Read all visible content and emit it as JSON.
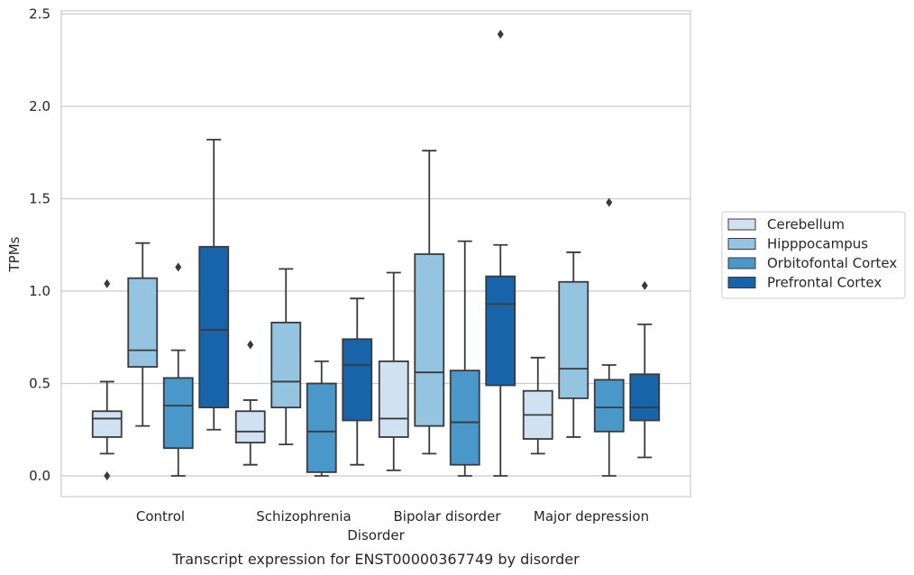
{
  "chart_data": {
    "type": "box",
    "title": "",
    "caption": "Transcript expression for ENST00000367749 by disorder",
    "xlabel": "Disorder",
    "ylabel": "TPMs",
    "ylim": [
      -0.11,
      2.51
    ],
    "yticks": [
      0.0,
      0.5,
      1.0,
      1.5,
      2.0,
      2.5
    ],
    "ytick_labels": [
      "0.0",
      "0.5",
      "1.0",
      "1.5",
      "2.0",
      "2.5"
    ],
    "grid": true,
    "legend_position": "right",
    "categories": [
      "Control",
      "Schizophrenia",
      "Bipolar disorder",
      "Major depression"
    ],
    "series": [
      {
        "name": "Cerebellum",
        "color": "#d0e1f2",
        "boxes": [
          {
            "whislo": 0.12,
            "q1": 0.21,
            "med": 0.31,
            "q3": 0.35,
            "whishi": 0.51,
            "fliers": [
              1.04,
              0.0
            ]
          },
          {
            "whislo": 0.06,
            "q1": 0.18,
            "med": 0.24,
            "q3": 0.35,
            "whishi": 0.41,
            "fliers": [
              0.71
            ]
          },
          {
            "whislo": 0.03,
            "q1": 0.21,
            "med": 0.31,
            "q3": 0.62,
            "whishi": 1.1,
            "fliers": []
          },
          {
            "whislo": 0.12,
            "q1": 0.2,
            "med": 0.33,
            "q3": 0.46,
            "whishi": 0.64,
            "fliers": []
          }
        ]
      },
      {
        "name": "Hipppocampus",
        "color": "#94c4df",
        "boxes": [
          {
            "whislo": 0.27,
            "q1": 0.59,
            "med": 0.68,
            "q3": 1.07,
            "whishi": 1.26,
            "fliers": []
          },
          {
            "whislo": 0.17,
            "q1": 0.37,
            "med": 0.51,
            "q3": 0.83,
            "whishi": 1.12,
            "fliers": []
          },
          {
            "whislo": 0.12,
            "q1": 0.27,
            "med": 0.56,
            "q3": 1.2,
            "whishi": 1.76,
            "fliers": []
          },
          {
            "whislo": 0.21,
            "q1": 0.42,
            "med": 0.58,
            "q3": 1.05,
            "whishi": 1.21,
            "fliers": []
          }
        ]
      },
      {
        "name": "Orbitofontal Cortex",
        "color": "#4a98c9",
        "boxes": [
          {
            "whislo": 0.0,
            "q1": 0.15,
            "med": 0.38,
            "q3": 0.53,
            "whishi": 0.68,
            "fliers": [
              1.13
            ]
          },
          {
            "whislo": 0.0,
            "q1": 0.02,
            "med": 0.24,
            "q3": 0.5,
            "whishi": 0.62,
            "fliers": []
          },
          {
            "whislo": 0.0,
            "q1": 0.06,
            "med": 0.29,
            "q3": 0.57,
            "whishi": 1.27,
            "fliers": []
          },
          {
            "whislo": 0.0,
            "q1": 0.24,
            "med": 0.37,
            "q3": 0.52,
            "whishi": 0.6,
            "fliers": [
              1.48
            ]
          }
        ]
      },
      {
        "name": "Prefrontal Cortex",
        "color": "#1764ab",
        "boxes": [
          {
            "whislo": 0.25,
            "q1": 0.37,
            "med": 0.79,
            "q3": 1.24,
            "whishi": 1.82,
            "fliers": []
          },
          {
            "whislo": 0.06,
            "q1": 0.3,
            "med": 0.6,
            "q3": 0.74,
            "whishi": 0.96,
            "fliers": []
          },
          {
            "whislo": 0.0,
            "q1": 0.49,
            "med": 0.93,
            "q3": 1.08,
            "whishi": 1.25,
            "fliers": [
              2.39
            ]
          },
          {
            "whislo": 0.1,
            "q1": 0.3,
            "med": 0.37,
            "q3": 0.55,
            "whishi": 0.82,
            "fliers": [
              1.03
            ]
          }
        ]
      }
    ]
  }
}
